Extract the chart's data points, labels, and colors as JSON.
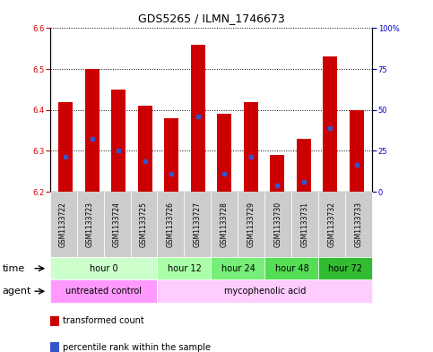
{
  "title": "GDS5265 / ILMN_1746673",
  "samples": [
    "GSM1133722",
    "GSM1133723",
    "GSM1133724",
    "GSM1133725",
    "GSM1133726",
    "GSM1133727",
    "GSM1133728",
    "GSM1133729",
    "GSM1133730",
    "GSM1133731",
    "GSM1133732",
    "GSM1133733"
  ],
  "bar_tops": [
    6.42,
    6.5,
    6.45,
    6.41,
    6.38,
    6.56,
    6.39,
    6.42,
    6.29,
    6.33,
    6.53,
    6.4
  ],
  "bar_bottom": 6.2,
  "blue_markers": [
    6.285,
    6.33,
    6.3,
    6.275,
    6.245,
    6.385,
    6.245,
    6.285,
    6.215,
    6.225,
    6.355,
    6.265
  ],
  "ylim": [
    6.2,
    6.6
  ],
  "yticks_left": [
    6.2,
    6.3,
    6.4,
    6.5,
    6.6
  ],
  "yticks_right_vals": [
    0,
    25,
    50,
    75,
    100
  ],
  "yticks_right_labels": [
    "0",
    "25",
    "50",
    "75",
    "100%"
  ],
  "bar_color": "#cc0000",
  "blue_color": "#3355cc",
  "bar_width": 0.55,
  "time_groups": [
    {
      "label": "hour 0",
      "start": 0,
      "end": 4,
      "color": "#ccffcc"
    },
    {
      "label": "hour 12",
      "start": 4,
      "end": 6,
      "color": "#aaffaa"
    },
    {
      "label": "hour 24",
      "start": 6,
      "end": 8,
      "color": "#77ee77"
    },
    {
      "label": "hour 48",
      "start": 8,
      "end": 10,
      "color": "#55dd55"
    },
    {
      "label": "hour 72",
      "start": 10,
      "end": 12,
      "color": "#33bb33"
    }
  ],
  "agent_groups": [
    {
      "label": "untreated control",
      "start": 0,
      "end": 4,
      "color": "#ff99ff"
    },
    {
      "label": "mycophenolic acid",
      "start": 4,
      "end": 12,
      "color": "#ffccff"
    }
  ],
  "legend_items": [
    {
      "label": "transformed count",
      "color": "#cc0000",
      "marker": "s"
    },
    {
      "label": "percentile rank within the sample",
      "color": "#3355cc",
      "marker": "s"
    }
  ],
  "title_fontsize": 9,
  "tick_label_fontsize": 6,
  "row_label_fontsize": 8,
  "group_label_fontsize": 7,
  "legend_fontsize": 7,
  "plot_bg": "#e8e8e8",
  "xtick_bg": "#cccccc",
  "bg_color": "#ffffff",
  "left_color": "#cc0000",
  "right_color": "#0000cc"
}
